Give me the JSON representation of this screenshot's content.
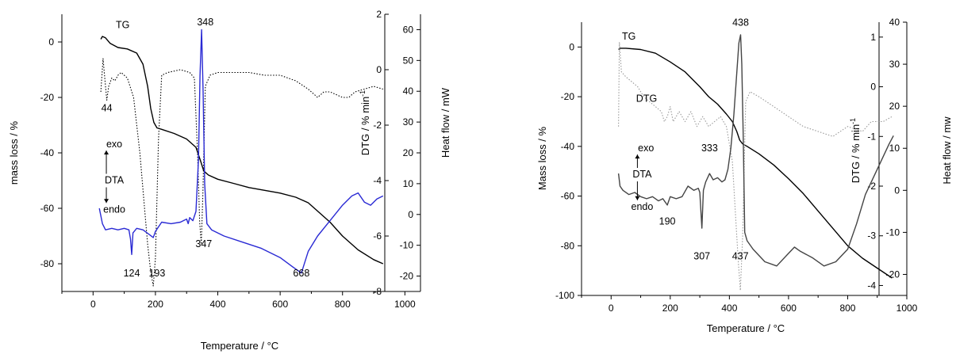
{
  "chart_data": [
    {
      "type": "line",
      "xlabel": "Temperature / °C",
      "ylabel": "mass loss / %",
      "y2label": "DTG / % min",
      "y2label_sup": "-1",
      "y3label": "Heat flow / mW",
      "xlim": [
        -100,
        1050
      ],
      "ylim": [
        -90,
        10
      ],
      "y2lim": [
        -8,
        2
      ],
      "y3lim": [
        -25,
        65
      ],
      "xticks": [
        0,
        200,
        400,
        600,
        800,
        1000
      ],
      "yticks": [
        0,
        -20,
        -40,
        -60,
        -80
      ],
      "y2ticks": [
        2,
        0,
        -2,
        -4,
        -6,
        -8
      ],
      "y3ticks": [
        60,
        50,
        40,
        30,
        20,
        10,
        0,
        -10,
        -20
      ],
      "series": [
        {
          "name": "TG",
          "color": "#000000",
          "style": "solid",
          "axis": "y",
          "x": [
            25,
            30,
            40,
            55,
            80,
            110,
            140,
            160,
            175,
            185,
            195,
            205,
            220,
            260,
            300,
            330,
            345,
            355,
            370,
            400,
            450,
            500,
            550,
            600,
            650,
            690,
            720,
            760,
            800,
            850,
            900,
            930
          ],
          "y": [
            1,
            2,
            1.5,
            -0.5,
            -2,
            -2.5,
            -4,
            -8,
            -16,
            -24,
            -29,
            -31,
            -31.5,
            -33,
            -35,
            -38,
            -43,
            -46.5,
            -48,
            -49.5,
            -51,
            -52.5,
            -53.5,
            -54.5,
            -56,
            -58,
            -61,
            -65,
            -70,
            -75,
            -78.5,
            -80
          ]
        },
        {
          "name": "DTG",
          "color": "#000000",
          "style": "dotted",
          "axis": "y2",
          "x": [
            25,
            32,
            40,
            44,
            50,
            60,
            70,
            80,
            90,
            110,
            130,
            150,
            165,
            175,
            185,
            193,
            200,
            210,
            220,
            240,
            280,
            310,
            325,
            335,
            342,
            347,
            352,
            360,
            375,
            400,
            450,
            500,
            550,
            600,
            650,
            690,
            720,
            740,
            760,
            780,
            800,
            820,
            840,
            870,
            900,
            930
          ],
          "y": [
            -0.8,
            0.4,
            -0.6,
            -1.1,
            -0.6,
            -0.3,
            -0.4,
            -0.2,
            -0.1,
            -0.3,
            -1.0,
            -3.0,
            -5.0,
            -6.3,
            -7.3,
            -7.8,
            -6.8,
            -2.5,
            -0.2,
            -0.1,
            0.0,
            -0.1,
            -0.3,
            -3.0,
            -5.5,
            -6.3,
            -4.5,
            -0.6,
            -0.2,
            -0.1,
            -0.1,
            -0.1,
            -0.2,
            -0.2,
            -0.4,
            -0.7,
            -1.0,
            -0.8,
            -0.8,
            -0.9,
            -1.0,
            -1.0,
            -0.8,
            -0.7,
            -0.6,
            -0.7
          ]
        },
        {
          "name": "DTA",
          "color": "#2a2ad4",
          "style": "solid",
          "axis": "y3",
          "x": [
            20,
            30,
            40,
            60,
            80,
            100,
            115,
            120,
            124,
            128,
            140,
            160,
            180,
            193,
            200,
            220,
            250,
            280,
            300,
            305,
            310,
            320,
            330,
            338,
            343,
            348,
            353,
            358,
            365,
            380,
            420,
            480,
            540,
            600,
            640,
            668,
            690,
            720,
            760,
            800,
            830,
            850,
            870,
            890,
            910,
            930
          ],
          "y": [
            2,
            -3,
            -5,
            -4.5,
            -5,
            -4.5,
            -5,
            -8,
            -13,
            -6,
            -4.5,
            -5,
            -6.5,
            -7.5,
            -5.5,
            -2.5,
            -3,
            -2.5,
            -1.5,
            -3,
            -1,
            -2,
            1,
            18,
            45,
            60,
            40,
            10,
            -3,
            -5,
            -7,
            -9,
            -11,
            -14,
            -17,
            -19,
            -12,
            -7,
            -2,
            3,
            6,
            7,
            4,
            3,
            5,
            6
          ]
        }
      ],
      "annotations": [
        {
          "text": "TG",
          "x": 95,
          "y": 5
        },
        {
          "text": "348",
          "x": 360,
          "y": 6
        },
        {
          "text": "44",
          "x": 44,
          "y": -25
        },
        {
          "text": "exo",
          "x": 68,
          "y": -38
        },
        {
          "text": "DTA",
          "x": 68,
          "y": -51
        },
        {
          "text": "endo",
          "x": 68,
          "y": -61.5
        },
        {
          "text": "124",
          "x": 124,
          "y": -84.5
        },
        {
          "text": "193",
          "x": 205,
          "y": -84.5
        },
        {
          "text": "347",
          "x": 355,
          "y": -74
        },
        {
          "text": "668",
          "x": 668,
          "y": -84.5
        }
      ]
    },
    {
      "type": "line",
      "xlabel": "Temperature / °C",
      "ylabel": "Mass loss / %",
      "y2label": "DTG / % min",
      "y2label_sup": "-1",
      "y3label": "Heat flow / mw",
      "xlim": [
        -100,
        1000
      ],
      "ylim": [
        -100,
        10
      ],
      "y2lim": [
        -4.2,
        1.3
      ],
      "y3lim": [
        -25,
        40
      ],
      "xticks": [
        0,
        200,
        400,
        600,
        800,
        1000
      ],
      "yticks": [
        0,
        -20,
        -40,
        -60,
        -80,
        -100
      ],
      "y2ticks": [
        1,
        0,
        -1,
        -2,
        -3,
        -4
      ],
      "y3ticks": [
        40,
        30,
        20,
        10,
        0,
        -10,
        -20
      ],
      "series": [
        {
          "name": "TG",
          "color": "#000000",
          "style": "solid",
          "axis": "y",
          "x": [
            25,
            30,
            50,
            100,
            150,
            200,
            250,
            300,
            330,
            360,
            390,
            410,
            425,
            435,
            445,
            460,
            500,
            550,
            600,
            650,
            700,
            750,
            800,
            850,
            900,
            950
          ],
          "y": [
            -1,
            -0.5,
            -0.5,
            -1,
            -2.5,
            -6,
            -10,
            -16,
            -20,
            -23,
            -27,
            -30,
            -34,
            -37.5,
            -39,
            -40,
            -43,
            -47.5,
            -53,
            -59,
            -66,
            -73,
            -80,
            -85,
            -89,
            -93
          ]
        },
        {
          "name": "DTG",
          "color": "#999999",
          "style": "dotted",
          "axis": "y2",
          "x": [
            25,
            28,
            35,
            50,
            70,
            90,
            110,
            130,
            150,
            170,
            180,
            190,
            200,
            210,
            230,
            250,
            270,
            290,
            310,
            330,
            350,
            370,
            390,
            410,
            420,
            430,
            437,
            445,
            455,
            470,
            500,
            550,
            600,
            650,
            700,
            750,
            800,
            850,
            880,
            920,
            950
          ],
          "y": [
            -0.8,
            0.9,
            0.3,
            0.2,
            0.1,
            0.0,
            -0.2,
            -0.3,
            -0.4,
            -0.5,
            -0.7,
            -0.6,
            -0.4,
            -0.7,
            -0.5,
            -0.7,
            -0.5,
            -0.8,
            -0.6,
            -0.8,
            -0.7,
            -0.6,
            -0.8,
            -1.5,
            -2.5,
            -3.5,
            -4.1,
            -3.0,
            -0.3,
            -0.1,
            -0.2,
            -0.4,
            -0.6,
            -0.8,
            -0.9,
            -1.0,
            -0.8,
            -0.9,
            -0.7,
            -0.7,
            -0.6
          ]
        },
        {
          "name": "DTA",
          "color": "#444444",
          "style": "solid",
          "axis": "y3",
          "x": [
            25,
            30,
            40,
            60,
            80,
            100,
            120,
            140,
            160,
            175,
            190,
            200,
            220,
            240,
            260,
            280,
            295,
            300,
            307,
            312,
            320,
            333,
            345,
            360,
            375,
            385,
            395,
            405,
            415,
            425,
            432,
            438,
            442,
            447,
            452,
            460,
            480,
            520,
            560,
            600,
            620,
            640,
            680,
            720,
            760,
            800,
            830,
            860,
            900,
            940,
            955
          ],
          "y": [
            4,
            1,
            0,
            -1,
            -0.5,
            -1.5,
            -2,
            -1.5,
            -2.5,
            -2,
            -3.5,
            -1.5,
            -2,
            -1.5,
            1,
            0,
            0.5,
            -0.5,
            -9,
            0,
            2,
            4,
            2.5,
            3,
            2,
            2.5,
            5,
            10,
            18,
            28,
            35,
            37,
            30,
            12,
            -10,
            -12,
            -14,
            -17,
            -18,
            -15,
            -13.5,
            -14.5,
            -16,
            -18,
            -17,
            -14,
            -8,
            -1,
            5,
            11,
            13
          ]
        }
      ],
      "annotations": [
        {
          "text": "TG",
          "x": 60,
          "y": 3
        },
        {
          "text": "438",
          "x": 438,
          "y": 8.5
        },
        {
          "text": "DTG",
          "x": 120,
          "y": -22
        },
        {
          "text": "exo",
          "x": 118,
          "y": -42
        },
        {
          "text": "DTA",
          "x": 105,
          "y": -52.5
        },
        {
          "text": "endo",
          "x": 105,
          "y": -65.5
        },
        {
          "text": "333",
          "x": 333,
          "y": -42
        },
        {
          "text": "190",
          "x": 190,
          "y": -71.5
        },
        {
          "text": "307",
          "x": 307,
          "y": -85.5
        },
        {
          "text": "437",
          "x": 437,
          "y": -85.5
        }
      ]
    }
  ]
}
